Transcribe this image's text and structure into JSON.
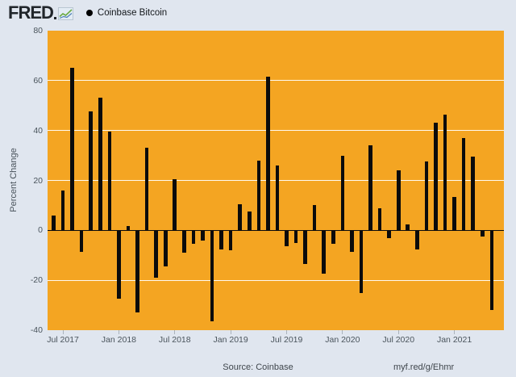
{
  "header": {
    "logo_text": "FRED",
    "legend_label": "Coinbase Bitcoin"
  },
  "footer": {
    "source": "Source: Coinbase",
    "link": "myf.red/g/Ehmr"
  },
  "colors": {
    "page_background": "#e0e6ef",
    "plot_background": "#f4a522",
    "bar": "#0b0b0b",
    "gridline": "#ffffff",
    "axis_text": "#4a545c",
    "logo": "#21262b",
    "logo_icon_line_green": "#6aaa43",
    "logo_icon_line_blue": "#4a7eb5"
  },
  "chart_data": {
    "type": "bar",
    "title": "Coinbase Bitcoin",
    "xlabel": "",
    "ylabel": "Percent Change",
    "ylim": [
      -40,
      80
    ],
    "yticks": [
      80,
      60,
      40,
      20,
      0,
      -20,
      -40
    ],
    "grid": "horizontal-white",
    "legend_position": "top-left-header",
    "x": [
      "Jun 2017",
      "Jul 2017",
      "Aug 2017",
      "Sep 2017",
      "Oct 2017",
      "Nov 2017",
      "Dec 2017",
      "Jan 2018",
      "Feb 2018",
      "Mar 2018",
      "Apr 2018",
      "May 2018",
      "Jun 2018",
      "Jul 2018",
      "Aug 2018",
      "Sep 2018",
      "Oct 2018",
      "Nov 2018",
      "Dec 2018",
      "Jan 2019",
      "Feb 2019",
      "Mar 2019",
      "Apr 2019",
      "May 2019",
      "Jun 2019",
      "Jul 2019",
      "Aug 2019",
      "Sep 2019",
      "Oct 2019",
      "Nov 2019",
      "Dec 2019",
      "Jan 2020",
      "Feb 2020",
      "Mar 2020",
      "Apr 2020",
      "May 2020",
      "Jun 2020",
      "Jul 2020",
      "Aug 2020",
      "Sep 2020",
      "Oct 2020",
      "Nov 2020",
      "Dec 2020",
      "Jan 2021",
      "Feb 2021",
      "Mar 2021",
      "Apr 2021",
      "May 2021"
    ],
    "values": [
      6,
      16,
      65,
      -8.5,
      47.5,
      53,
      39.5,
      -27.5,
      1.8,
      -33,
      33,
      -19,
      -14.5,
      20.5,
      -9,
      -5.5,
      -4,
      -36.5,
      -7.5,
      -8,
      10.5,
      7.5,
      28,
      61.5,
      26,
      -6.5,
      -5,
      -13.5,
      10,
      -17.5,
      -5.5,
      30,
      -8.5,
      -25,
      34,
      9,
      -3,
      24,
      2.5,
      -7.5,
      27.5,
      43,
      46.5,
      13.5,
      37,
      29.5,
      -2.5,
      -32
    ],
    "x_tick_labels": [
      "Jul 2017",
      "Jan 2018",
      "Jul 2018",
      "Jan 2019",
      "Jul 2019",
      "Jan 2020",
      "Jul 2020",
      "Jan 2021"
    ],
    "x_tick_indices": [
      1,
      7,
      13,
      19,
      25,
      31,
      37,
      43
    ]
  }
}
